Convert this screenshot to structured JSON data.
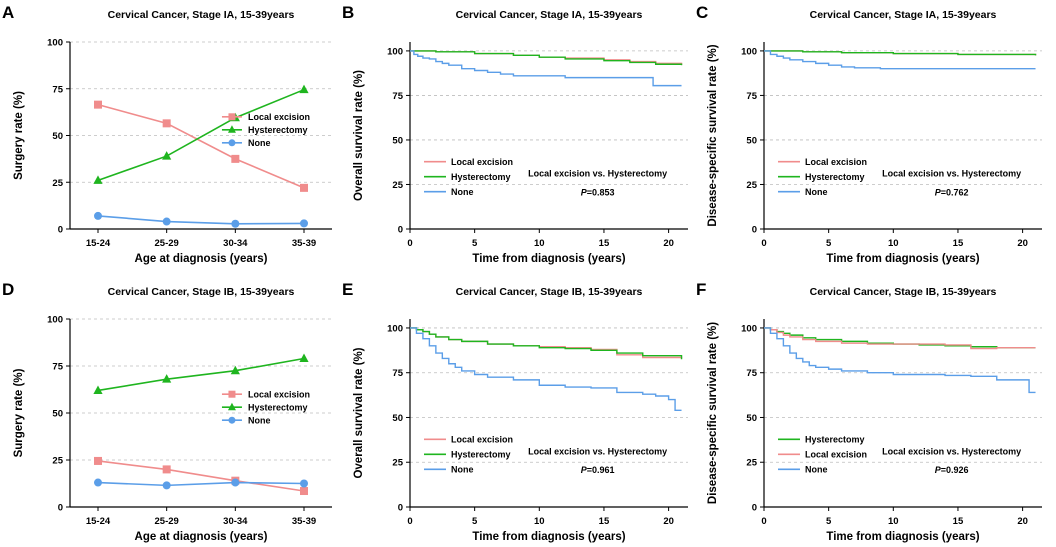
{
  "chart_data": [
    {
      "id": "A",
      "label": "A",
      "type": "line",
      "markers": true,
      "title": "Cervical Cancer, Stage IA, 15-39years",
      "xlabel": "Age at diagnosis (years)",
      "ylabel": "Surgery rate (%)",
      "categories": [
        "15-24",
        "25-29",
        "30-34",
        "35-39"
      ],
      "ylim": [
        0,
        100
      ],
      "yticks": [
        0,
        25,
        50,
        75,
        100
      ],
      "grid": "horizontal dashed",
      "legend_position": "center-right",
      "series": [
        {
          "name": "Local excision",
          "color": "#f08c8c",
          "marker": "square",
          "values": [
            66.5,
            56.5,
            37.5,
            22.0
          ]
        },
        {
          "name": "Hysterectomy",
          "color": "#1fb51f",
          "marker": "triangle",
          "values": [
            26.0,
            39.0,
            59.5,
            74.5
          ]
        },
        {
          "name": "None",
          "color": "#5b9ee8",
          "marker": "circle",
          "values": [
            7.0,
            4.0,
            2.8,
            3.0
          ]
        }
      ]
    },
    {
      "id": "B",
      "label": "B",
      "type": "line",
      "step": true,
      "title": "Cervical Cancer, Stage IA, 15-39years",
      "xlabel": "Time from diagnosis (years)",
      "ylabel": "Overall survival rate (%)",
      "xlim": [
        0,
        21.5
      ],
      "xticks": [
        0,
        5,
        10,
        15,
        20
      ],
      "ylim": [
        0,
        105
      ],
      "yticks": [
        0,
        25,
        50,
        75,
        100
      ],
      "grid": "horizontal dashed",
      "annotation": "Local excision vs. Hysterectomy",
      "p_label": "P",
      "p_value": "=0.853",
      "legend_position": "bottom-left",
      "series": [
        {
          "name": "Local excision",
          "color": "#f08c8c",
          "x": [
            0,
            2,
            5,
            8,
            10,
            12,
            15,
            17,
            19,
            21
          ],
          "y": [
            100,
            99.5,
            98.5,
            97.5,
            96.5,
            96,
            95,
            94,
            93,
            92
          ]
        },
        {
          "name": "Hysterectomy",
          "color": "#1fb51f",
          "x": [
            0,
            2,
            5,
            8,
            10,
            12,
            15,
            17,
            19,
            21
          ],
          "y": [
            100,
            99.5,
            98.5,
            97.5,
            96.5,
            95.5,
            94.5,
            93.5,
            92.5,
            92
          ]
        },
        {
          "name": "None",
          "color": "#5b9ee8",
          "x": [
            0,
            0.3,
            0.6,
            1,
            1.5,
            2,
            2.5,
            3,
            4,
            5,
            6,
            7,
            8,
            9,
            12,
            15,
            18.5,
            18.8,
            21
          ],
          "y": [
            100,
            98,
            97,
            96,
            95.5,
            94,
            93,
            92,
            90,
            89,
            88,
            87,
            86,
            86,
            85,
            85,
            85,
            80.5,
            80.5
          ]
        }
      ]
    },
    {
      "id": "C",
      "label": "C",
      "type": "line",
      "step": true,
      "title": "Cervical Cancer, Stage IA, 15-39years",
      "xlabel": "Time from diagnosis (years)",
      "ylabel": "Disease-specific survival rate (%)",
      "xlim": [
        0,
        21.5
      ],
      "xticks": [
        0,
        5,
        10,
        15,
        20
      ],
      "ylim": [
        0,
        105
      ],
      "yticks": [
        0,
        25,
        50,
        75,
        100
      ],
      "grid": "horizontal dashed",
      "annotation": "Local excision vs. Hysterectomy",
      "p_label": "P",
      "p_value": "=0.762",
      "legend_position": "bottom-left",
      "series": [
        {
          "name": "Local excision",
          "color": "#f08c8c",
          "x": [
            0,
            3,
            6,
            10,
            15,
            21
          ],
          "y": [
            100,
            99.5,
            99,
            98.5,
            98,
            97.5
          ]
        },
        {
          "name": "Hysterectomy",
          "color": "#1fb51f",
          "x": [
            0,
            3,
            6,
            10,
            15,
            21
          ],
          "y": [
            100,
            99.5,
            99,
            98.5,
            98,
            97.5
          ]
        },
        {
          "name": "None",
          "color": "#5b9ee8",
          "x": [
            0,
            0.5,
            1,
            1.5,
            2,
            3,
            4,
            5,
            6,
            7,
            9,
            21
          ],
          "y": [
            100,
            98,
            97,
            96,
            95,
            94,
            93,
            92,
            91,
            90.5,
            90,
            90
          ]
        }
      ]
    },
    {
      "id": "D",
      "label": "D",
      "type": "line",
      "markers": true,
      "title": "Cervical Cancer, Stage IB, 15-39years",
      "xlabel": "Age at diagnosis (years)",
      "ylabel": "Surgery rate (%)",
      "categories": [
        "15-24",
        "25-29",
        "30-34",
        "35-39"
      ],
      "ylim": [
        0,
        100
      ],
      "yticks": [
        0,
        25,
        50,
        75,
        100
      ],
      "grid": "horizontal dashed",
      "legend_position": "center-right",
      "series": [
        {
          "name": "Local excision",
          "color": "#f08c8c",
          "marker": "square",
          "values": [
            24.5,
            20.0,
            14.0,
            8.5
          ]
        },
        {
          "name": "Hysterectomy",
          "color": "#1fb51f",
          "marker": "triangle",
          "values": [
            62.0,
            68.0,
            72.5,
            79.0
          ]
        },
        {
          "name": "None",
          "color": "#5b9ee8",
          "marker": "circle",
          "values": [
            13.0,
            11.5,
            13.0,
            12.5
          ]
        }
      ]
    },
    {
      "id": "E",
      "label": "E",
      "type": "line",
      "step": true,
      "title": "Cervical Cancer, Stage IB, 15-39years",
      "xlabel": "Time from diagnosis (years)",
      "ylabel": "Overall survival rate (%)",
      "xlim": [
        0,
        21.5
      ],
      "xticks": [
        0,
        5,
        10,
        15,
        20
      ],
      "ylim": [
        0,
        105
      ],
      "yticks": [
        0,
        25,
        50,
        75,
        100
      ],
      "grid": "horizontal dashed",
      "annotation": "Local excision vs. Hysterectomy",
      "p_label": "P",
      "p_value": "=0.961",
      "legend_position": "bottom-left",
      "series": [
        {
          "name": "Local excision",
          "color": "#f08c8c",
          "x": [
            0,
            0.5,
            1,
            1.5,
            2,
            3,
            4,
            6,
            8,
            10,
            12,
            14,
            16,
            18,
            21
          ],
          "y": [
            100,
            99,
            98,
            96.5,
            95,
            93.5,
            92.5,
            91,
            90,
            89.5,
            89,
            88,
            85,
            83.5,
            83
          ]
        },
        {
          "name": "Hysterectomy",
          "color": "#1fb51f",
          "x": [
            0,
            0.5,
            1,
            1.5,
            2,
            3,
            4,
            6,
            8,
            10,
            12,
            14,
            16,
            18,
            21
          ],
          "y": [
            100,
            99,
            98,
            96.5,
            95,
            93.5,
            92.5,
            91,
            90,
            89,
            88.5,
            87.5,
            86,
            84.5,
            82.5
          ]
        },
        {
          "name": "None",
          "color": "#5b9ee8",
          "x": [
            0,
            0.5,
            1,
            1.5,
            2,
            2.5,
            3,
            3.5,
            4,
            5,
            6,
            8,
            10,
            12,
            14,
            16,
            18,
            19,
            20,
            20.5,
            21
          ],
          "y": [
            100,
            97,
            94,
            90,
            86,
            83,
            80,
            78,
            76,
            74,
            72.5,
            71,
            68,
            67,
            66.5,
            64,
            63,
            62,
            60,
            54,
            54
          ]
        }
      ]
    },
    {
      "id": "F",
      "label": "F",
      "type": "line",
      "step": true,
      "title": "Cervical Cancer, Stage IB, 15-39years",
      "xlabel": "Time from diagnosis (years)",
      "ylabel": "Disease-specific survival rate (%)",
      "xlim": [
        0,
        21.5
      ],
      "xticks": [
        0,
        5,
        10,
        15,
        20
      ],
      "ylim": [
        0,
        105
      ],
      "yticks": [
        0,
        25,
        50,
        75,
        100
      ],
      "grid": "horizontal dashed",
      "annotation": "Local excision vs. Hysterectomy",
      "p_label": "P",
      "p_value": "=0.926",
      "legend_position": "bottom-left",
      "series": [
        {
          "name": "Hysterectomy",
          "color": "#1fb51f",
          "x": [
            0,
            0.5,
            1,
            1.5,
            2,
            3,
            4,
            6,
            8,
            10,
            12,
            14,
            16,
            18,
            21
          ],
          "y": [
            100,
            99,
            98,
            97,
            96,
            94.5,
            93.5,
            92.5,
            91.5,
            91,
            90.5,
            90,
            89.5,
            89,
            89
          ]
        },
        {
          "name": "Local excision",
          "color": "#f08c8c",
          "x": [
            0,
            0.5,
            1,
            1.5,
            2,
            3,
            4,
            6,
            8,
            10,
            12,
            14,
            16,
            18,
            21
          ],
          "y": [
            100,
            99,
            97.5,
            96,
            95,
            93.5,
            92.5,
            91.5,
            91,
            91,
            91,
            90.5,
            88.5,
            89,
            89
          ]
        },
        {
          "name": "None",
          "color": "#5b9ee8",
          "x": [
            0,
            0.5,
            1,
            1.5,
            2,
            2.5,
            3,
            3.5,
            4,
            5,
            6,
            8,
            10,
            12,
            14,
            16,
            18,
            19,
            20,
            20.5,
            21
          ],
          "y": [
            100,
            97,
            94,
            90,
            86,
            83,
            81,
            79,
            78,
            77,
            76,
            75,
            74,
            74,
            73.5,
            73,
            71,
            71,
            71,
            64,
            64
          ]
        }
      ]
    }
  ]
}
